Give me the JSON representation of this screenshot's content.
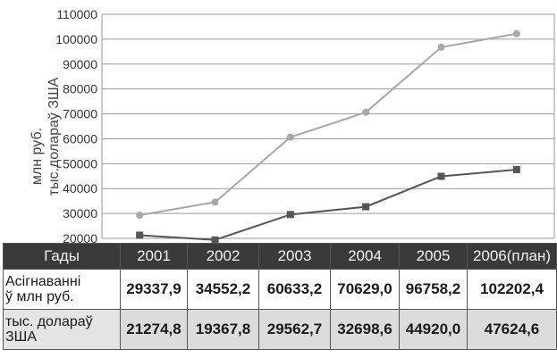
{
  "chart_data": {
    "type": "line",
    "ylabel_lines": [
      "млн руб.",
      "тыс.долараў ЗША"
    ],
    "ylim": [
      20000,
      110000
    ],
    "yticks": [
      "20000",
      "30000",
      "40000",
      "50000",
      "60000",
      "70000",
      "80000",
      "90000",
      "100000",
      "110000"
    ],
    "categories": [
      "2001",
      "2002",
      "2003",
      "2004",
      "2005",
      "2006(план)"
    ],
    "series": [
      {
        "name": "Асігнаванні ў млн руб.",
        "values": [
          29337.9,
          34552.2,
          60633.2,
          70629.0,
          96758.2,
          102202.4
        ],
        "color": "#a8a8a8",
        "marker": "circle"
      },
      {
        "name": "тыс. долараў ЗША",
        "values": [
          21274.8,
          19367.8,
          29562.7,
          32698.6,
          44920.0,
          47624.6
        ],
        "color": "#555555",
        "marker": "square"
      }
    ],
    "grid": true
  },
  "table": {
    "header_label": "Гады",
    "years": [
      "2001",
      "2002",
      "2003",
      "2004",
      "2005",
      "2006(план)"
    ],
    "rows": [
      {
        "label_lines": [
          "Асігнаванні",
          "ў млн руб."
        ],
        "cells": [
          "29337,9",
          "34552,2",
          "60633,2",
          "70629,0",
          "96758,2",
          "102202,4"
        ]
      },
      {
        "label_lines": [
          "тыс. долараў",
          "ЗША"
        ],
        "cells": [
          "21274,8",
          "19367,8",
          "29562,7",
          "32698,6",
          "44920,0",
          "47624,6"
        ]
      }
    ]
  }
}
